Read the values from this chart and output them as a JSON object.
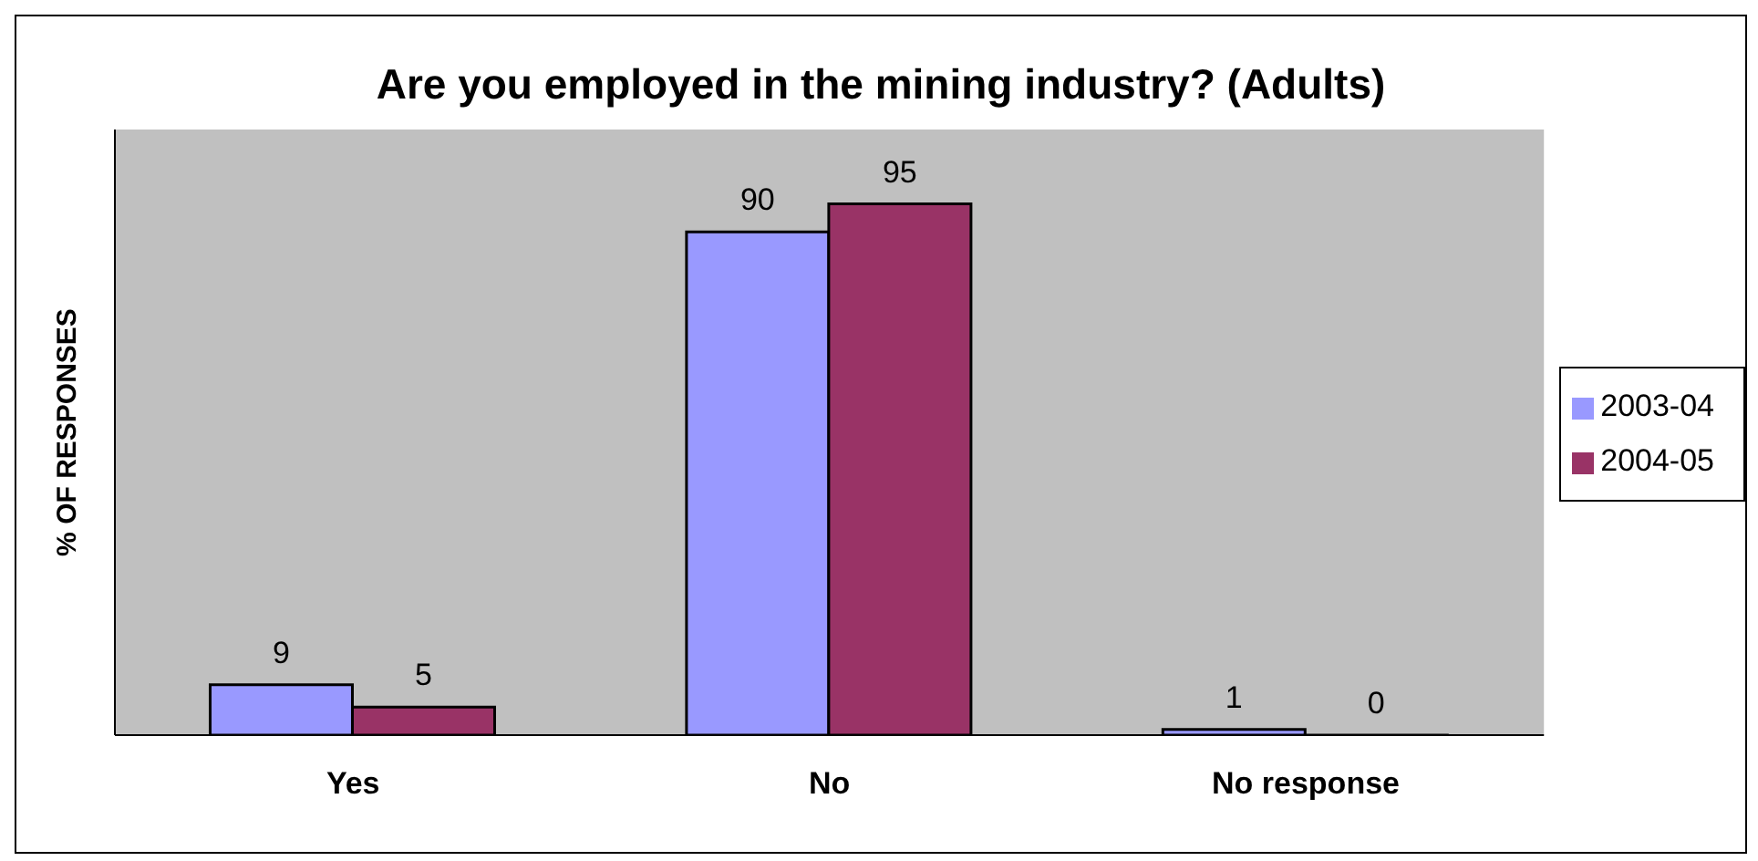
{
  "chart_data": {
    "type": "bar",
    "title": "Are you employed in the mining industry? (Adults)",
    "ylabel": "% OF RESPONSES",
    "categories": [
      "Yes",
      "No",
      "No response"
    ],
    "series": [
      {
        "name": "2003-04",
        "color": "#9999ff",
        "values": [
          9,
          90,
          1
        ]
      },
      {
        "name": "2004-05",
        "color": "#993366",
        "values": [
          5,
          95,
          0
        ]
      }
    ],
    "data_labels": true,
    "grid": false,
    "legend": "right"
  }
}
